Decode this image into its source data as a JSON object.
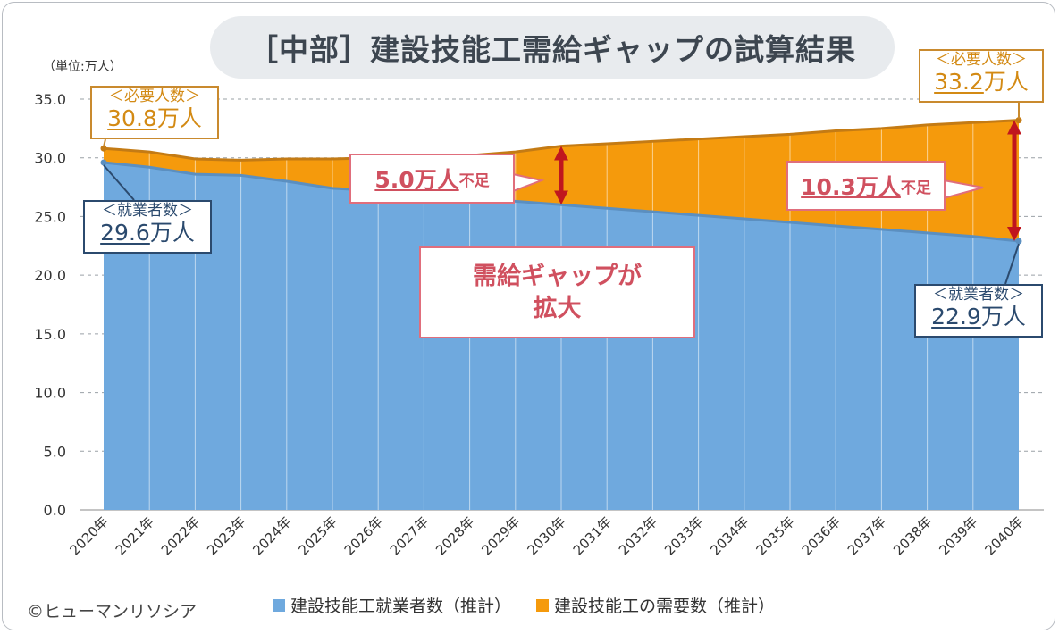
{
  "title": "［中部］建設技能工需給ギャップの試算結果",
  "unit_label": "（単位:万人）",
  "copyright": "©ヒューマンリソシア",
  "colors": {
    "workers": "#6fa9de",
    "demand": "#f59a0c",
    "workers_line": "#5b8fc0",
    "demand_line": "#c47b14",
    "arrow": "#c0161e"
  },
  "callouts": {
    "need_start": {
      "label": "＜必要人数＞",
      "value": "30.8",
      "unit": "万人"
    },
    "need_end": {
      "label": "＜必要人数＞",
      "value": "33.2",
      "unit": "万人"
    },
    "work_start": {
      "label": "＜就業者数＞",
      "value": "29.6",
      "unit": "万人"
    },
    "work_end": {
      "label": "＜就業者数＞",
      "value": "22.9",
      "unit": "万人"
    },
    "short_2030": {
      "value": "5.0万人",
      "suffix": "不足"
    },
    "short_2040": {
      "value": "10.3万人",
      "suffix": "不足"
    },
    "gap_line1": "需給ギャップが",
    "gap_line2": "拡大"
  },
  "chart_data": {
    "type": "area",
    "x": [
      "2020年",
      "2021年",
      "2022年",
      "2023年",
      "2024年",
      "2025年",
      "2026年",
      "2027年",
      "2028年",
      "2029年",
      "2030年",
      "2031年",
      "2032年",
      "2033年",
      "2034年",
      "2035年",
      "2036年",
      "2037年",
      "2038年",
      "2039年",
      "2040年"
    ],
    "series": [
      {
        "name": "建設技能工就業者数（推計）",
        "values": [
          29.6,
          29.2,
          28.6,
          28.5,
          28.0,
          27.4,
          27.2,
          26.9,
          26.6,
          26.3,
          26.0,
          25.7,
          25.4,
          25.1,
          24.8,
          24.5,
          24.2,
          23.9,
          23.6,
          23.3,
          22.9
        ]
      },
      {
        "name": "建設技能工の需要数（推計）",
        "values": [
          30.8,
          30.5,
          29.9,
          29.8,
          29.9,
          29.9,
          30.0,
          30.1,
          30.2,
          30.5,
          31.0,
          31.2,
          31.4,
          31.6,
          31.8,
          32.0,
          32.3,
          32.5,
          32.8,
          33.0,
          33.2
        ]
      }
    ],
    "y_ticks": [
      "35.0",
      "30.0",
      "25.0",
      "20.0",
      "15.0",
      "10.0",
      "5.0",
      "0.0"
    ],
    "ylim": [
      0,
      35
    ],
    "grid": true,
    "legend_position": "bottom"
  }
}
